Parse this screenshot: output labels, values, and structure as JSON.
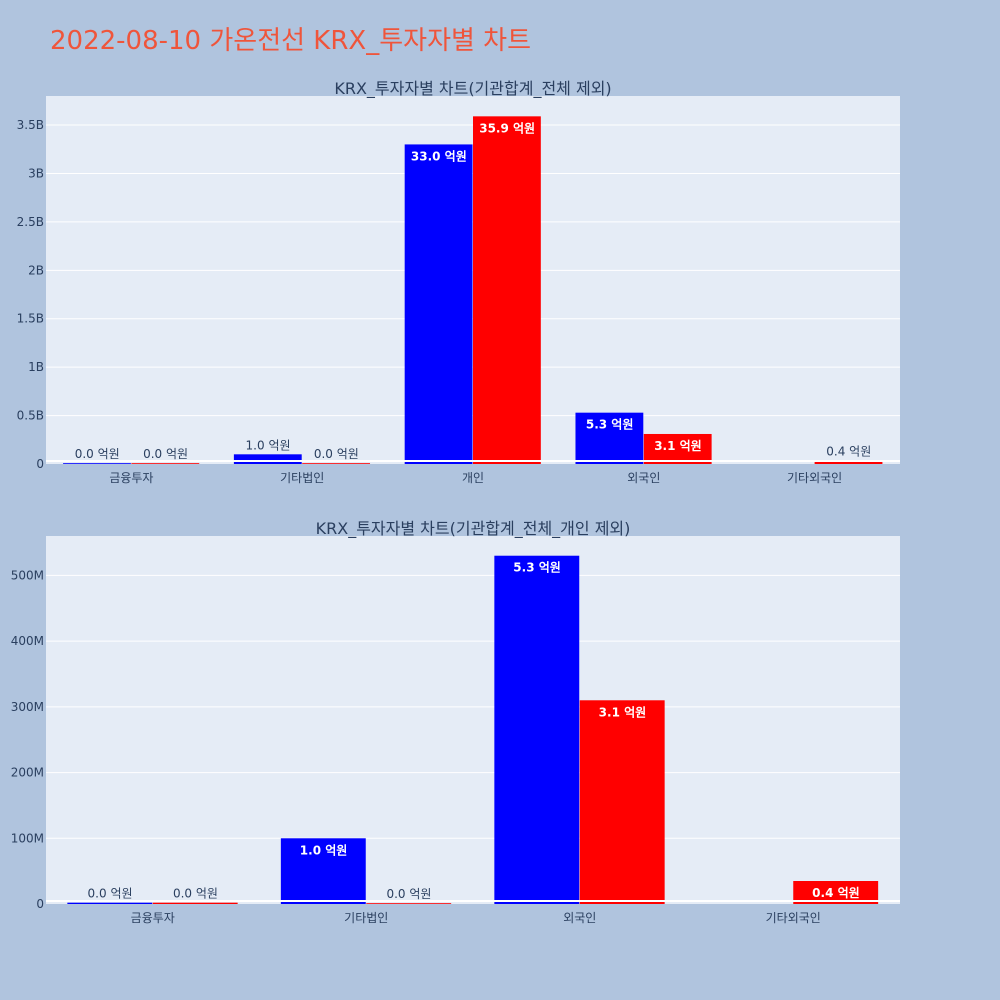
{
  "page_title": "2022-08-10 가온전선 KRX_투자자별 차트",
  "colors": {
    "background": "#b0c4de",
    "plot_bg": "#e5ecf6",
    "title": "#ef553b",
    "buy": "#0000ff",
    "sell": "#ff0000",
    "text": "#2a3f5f"
  },
  "chart_data": [
    {
      "type": "bar",
      "title": "KRX_투자자별 차트(기관합계_전체 제외)",
      "categories": [
        "금융투자",
        "기타법인",
        "개인",
        "외국인",
        "기타외국인"
      ],
      "ylim": [
        0,
        3800000000
      ],
      "yticks": [
        0,
        500000000,
        1000000000,
        1500000000,
        2000000000,
        2500000000,
        3000000000,
        3500000000
      ],
      "ytick_labels": [
        "0",
        "0.5B",
        "1B",
        "1.5B",
        "2B",
        "2.5B",
        "3B",
        "3.5B"
      ],
      "grid": true,
      "series": [
        {
          "color": "#0000ff",
          "values": [
            2000000,
            100000000,
            3300000000,
            530000000,
            null
          ],
          "labels": [
            "0.0 억원",
            "1.0 억원",
            "33.0 억원",
            "5.3 억원",
            ""
          ]
        },
        {
          "color": "#ff0000",
          "values": [
            2000000,
            1000000,
            3590000000,
            310000000,
            35000000
          ],
          "labels": [
            "0.0 억원",
            "0.0 억원",
            "35.9 억원",
            "3.1 억원",
            "0.4 억원"
          ]
        }
      ]
    },
    {
      "type": "bar",
      "title": "KRX_투자자별 차트(기관합계_전체_개인 제외)",
      "categories": [
        "금융투자",
        "기타법인",
        "외국인",
        "기타외국인"
      ],
      "ylim": [
        0,
        560000000
      ],
      "yticks": [
        0,
        100000000,
        200000000,
        300000000,
        400000000,
        500000000
      ],
      "ytick_labels": [
        "0",
        "100M",
        "200M",
        "300M",
        "400M",
        "500M"
      ],
      "grid": true,
      "series": [
        {
          "color": "#0000ff",
          "values": [
            2000000,
            100000000,
            530000000,
            null
          ],
          "labels": [
            "0.0 억원",
            "1.0 억원",
            "5.3 억원",
            ""
          ]
        },
        {
          "color": "#ff0000",
          "values": [
            2000000,
            1000000,
            310000000,
            35000000
          ],
          "labels": [
            "0.0 억원",
            "0.0 억원",
            "3.1 억원",
            "0.4 억원"
          ]
        }
      ]
    }
  ]
}
